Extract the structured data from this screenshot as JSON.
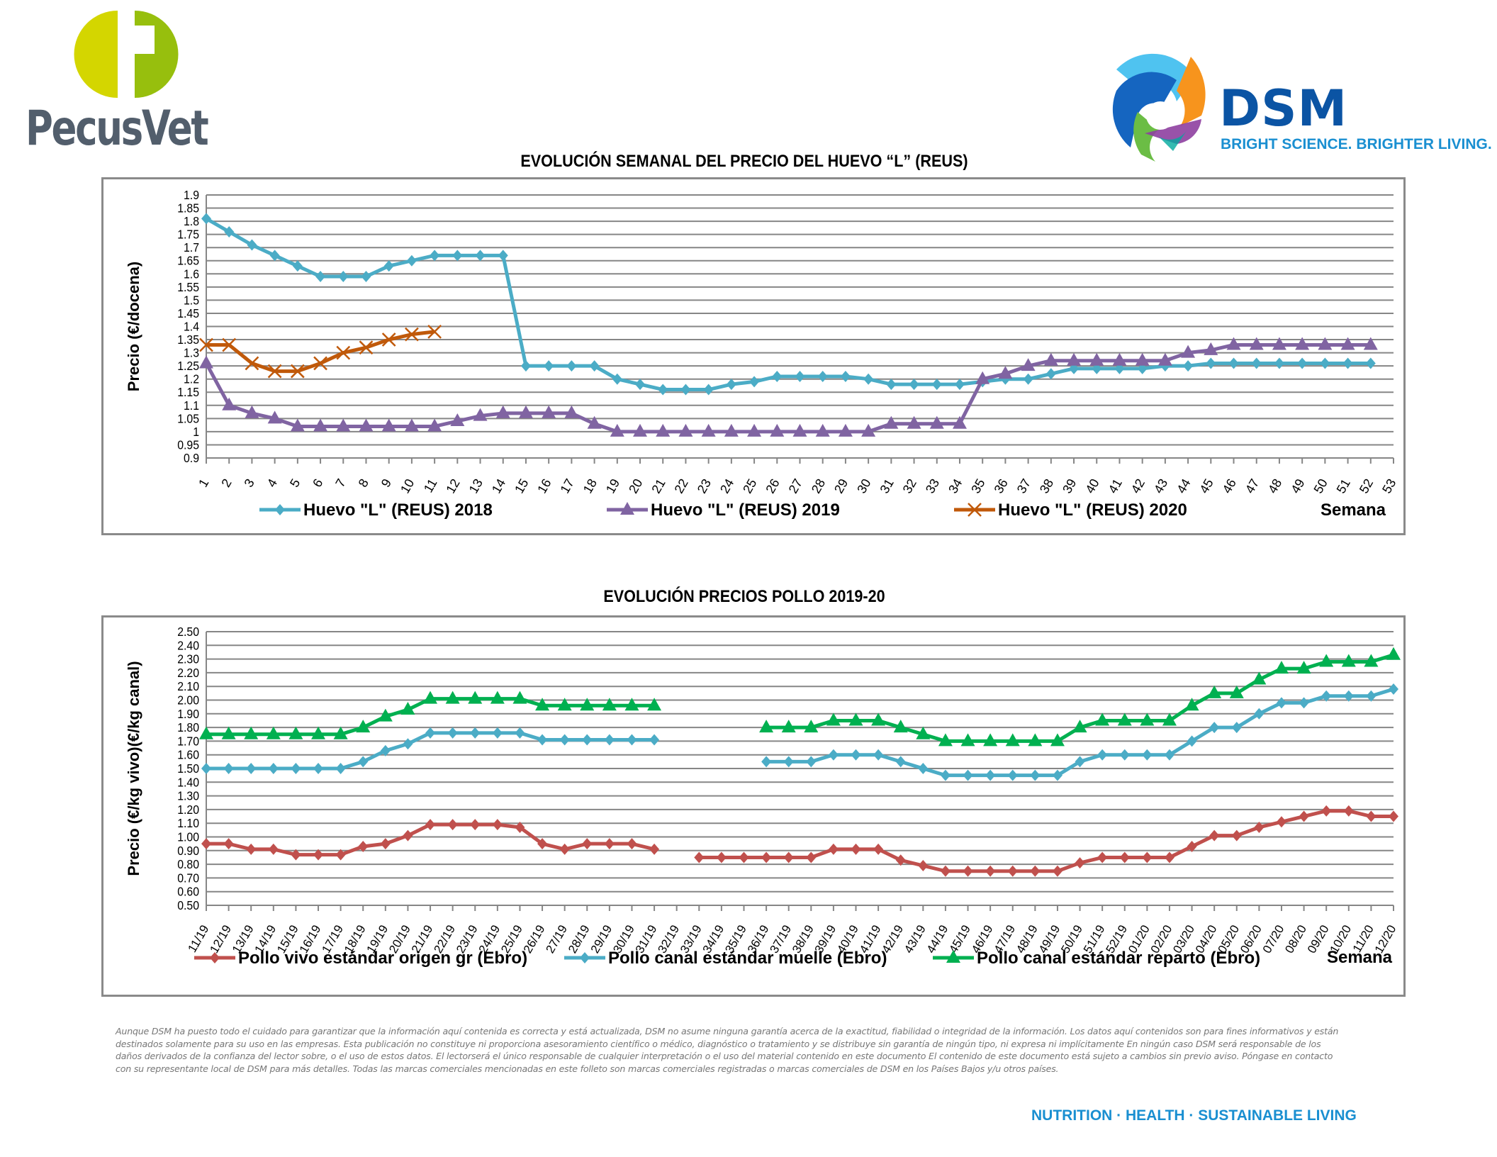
{
  "logos": {
    "left": {
      "name": "PecusVet",
      "letter": "P"
    },
    "right": {
      "name": "DSM",
      "tagline": "BRIGHT SCIENCE. BRIGHTER LIVING."
    }
  },
  "footer": {
    "disclaimer": "Aunque DSM ha puesto todo el cuidado para garantizar que la información aquí contenida es correcta y está actualizada, DSM no asume ninguna garantía acerca de la exactitud, fiabilidad o integridad de la información. Los datos aquí contenidos son para fines informativos y están destinados solamente para su uso en las empresas. Esta publicación no constituye ni proporciona asesoramiento científico o médico, diagnóstico o tratamiento y se distribuye sin garantía de ningún tipo, ni expresa ni implícitamente En ningún caso DSM será responsable de los daños derivados de la confianza del lector sobre, o el uso de estos datos. El lectorserá el único responsable de cualquier interpretación o el uso del material contenido en este documento El contenido de este documento está sujeto a cambios sin previo aviso. Póngase en contacto con su representante local de DSM para más detalles. Todas las marcas comerciales mencionadas en este folleto son marcas comerciales registradas o marcas comerciales de DSM en los Países Bajos y/u otros países.",
    "tagline": "NUTRITION  ·  HEALTH  ·  SUSTAINABLE LIVING"
  },
  "chart_data": [
    {
      "type": "line",
      "title": "EVOLUCIÓN SEMANAL DEL PRECIO DEL HUEVO “L” (REUS)",
      "xlabel": "Semana",
      "ylabel": "Precio (€/docena)",
      "ylim": [
        0.9,
        1.9
      ],
      "ytick_step": 0.05,
      "yticks": [
        "0.9",
        "0.95",
        "1",
        "1.05",
        "1.1",
        "1.15",
        "1.2",
        "1.25",
        "1.3",
        "1.35",
        "1.4",
        "1.45",
        "1.5",
        "1.55",
        "1.6",
        "1.65",
        "1.7",
        "1.75",
        "1.8",
        "1.85",
        "1.9"
      ],
      "grid": true,
      "legend": "bottom",
      "categories": [
        "1",
        "2",
        "3",
        "4",
        "5",
        "6",
        "7",
        "8",
        "9",
        "10",
        "11",
        "12",
        "13",
        "14",
        "15",
        "16",
        "17",
        "18",
        "19",
        "20",
        "21",
        "22",
        "23",
        "24",
        "25",
        "26",
        "27",
        "28",
        "29",
        "30",
        "31",
        "32",
        "33",
        "34",
        "35",
        "36",
        "37",
        "38",
        "39",
        "40",
        "41",
        "42",
        "43",
        "44",
        "45",
        "46",
        "47",
        "48",
        "49",
        "50",
        "51",
        "52",
        "53"
      ],
      "series": [
        {
          "name": "Huevo \"L\" (REUS) 2018",
          "color": "#4bacc6",
          "marker": "diamond",
          "values": [
            1.81,
            1.76,
            1.71,
            1.67,
            1.63,
            1.59,
            1.59,
            1.59,
            1.63,
            1.65,
            1.67,
            1.67,
            1.67,
            1.67,
            1.25,
            1.25,
            1.25,
            1.25,
            1.2,
            1.18,
            1.16,
            1.16,
            1.16,
            1.18,
            1.19,
            1.21,
            1.21,
            1.21,
            1.21,
            1.2,
            1.18,
            1.18,
            1.18,
            1.18,
            1.19,
            1.2,
            1.2,
            1.22,
            1.24,
            1.24,
            1.24,
            1.24,
            1.25,
            1.25,
            1.26,
            1.26,
            1.26,
            1.26,
            1.26,
            1.26,
            1.26,
            1.26,
            null
          ]
        },
        {
          "name": "Huevo \"L\" (REUS) 2019",
          "color": "#8064a2",
          "marker": "triangle",
          "values": [
            1.26,
            1.1,
            1.07,
            1.05,
            1.02,
            1.02,
            1.02,
            1.02,
            1.02,
            1.02,
            1.02,
            1.04,
            1.06,
            1.07,
            1.07,
            1.07,
            1.07,
            1.03,
            1.0,
            1.0,
            1.0,
            1.0,
            1.0,
            1.0,
            1.0,
            1.0,
            1.0,
            1.0,
            1.0,
            1.0,
            1.03,
            1.03,
            1.03,
            1.03,
            1.2,
            1.22,
            1.25,
            1.27,
            1.27,
            1.27,
            1.27,
            1.27,
            1.27,
            1.3,
            1.31,
            1.33,
            1.33,
            1.33,
            1.33,
            1.33,
            1.33,
            1.33,
            null
          ]
        },
        {
          "name": "Huevo \"L\" (REUS) 2020",
          "color": "#c0590a",
          "marker": "x",
          "values": [
            1.33,
            1.33,
            1.26,
            1.23,
            1.23,
            1.26,
            1.3,
            1.32,
            1.35,
            1.37,
            1.38,
            null,
            null,
            null,
            null,
            null,
            null,
            null,
            null,
            null,
            null,
            null,
            null,
            null,
            null,
            null,
            null,
            null,
            null,
            null,
            null,
            null,
            null,
            null,
            null,
            null,
            null,
            null,
            null,
            null,
            null,
            null,
            null,
            null,
            null,
            null,
            null,
            null,
            null,
            null,
            null,
            null,
            null
          ]
        }
      ]
    },
    {
      "type": "line",
      "title": "EVOLUCIÓN PRECIOS POLLO 2019-20",
      "xlabel": "Semana",
      "ylabel": "Precio (€/kg vivo)(€/kg canal)",
      "ylim": [
        0.5,
        2.5
      ],
      "ytick_step": 0.1,
      "yticks": [
        "0.50",
        "0.60",
        "0.70",
        "0.80",
        "0.90",
        "1.00",
        "1.10",
        "1.20",
        "1.30",
        "1.40",
        "1.50",
        "1.60",
        "1.70",
        "1.80",
        "1.90",
        "2.00",
        "2.10",
        "2.20",
        "2.30",
        "2.40",
        "2.50"
      ],
      "grid": true,
      "legend": "bottom",
      "categories": [
        "11/19",
        "12/19",
        "13/19",
        "14/19",
        "15/19",
        "16/19",
        "17/19",
        "18/19",
        "19/19",
        "20/19",
        "21/19",
        "22/19",
        "23/19",
        "24/19",
        "25/19",
        "26/19",
        "27/19",
        "28/19",
        "29/19",
        "30/19",
        "31/19",
        "32/19",
        "33/19",
        "34/19",
        "35/19",
        "36/19",
        "37/19",
        "38/19",
        "39/19",
        "40/19",
        "41/19",
        "42/19",
        "43/19",
        "44/19",
        "45/19",
        "46/19",
        "47/19",
        "48/19",
        "49/19",
        "50/19",
        "51/19",
        "52/19",
        "01/20",
        "02/20",
        "03/20",
        "04/20",
        "05/20",
        "06/20",
        "07/20",
        "08/20",
        "09/20",
        "10/20",
        "11/20",
        "12/20"
      ],
      "series": [
        {
          "name": "Pollo vivo estándar origen gr (Ebro)",
          "color": "#c0504d",
          "marker": "diamond",
          "values": [
            0.95,
            0.95,
            0.91,
            0.91,
            0.87,
            0.87,
            0.87,
            0.93,
            0.95,
            1.01,
            1.09,
            1.09,
            1.09,
            1.09,
            1.07,
            0.95,
            0.91,
            0.95,
            0.95,
            0.95,
            0.91,
            null,
            0.85,
            0.85,
            0.85,
            0.85,
            0.85,
            0.85,
            0.91,
            0.91,
            0.91,
            0.83,
            0.79,
            0.75,
            0.75,
            0.75,
            0.75,
            0.75,
            0.75,
            0.81,
            0.85,
            0.85,
            0.85,
            0.85,
            0.93,
            1.01,
            1.01,
            1.07,
            1.11,
            1.15,
            1.19,
            1.19,
            1.15,
            1.15
          ]
        },
        {
          "name": "Pollo canal estándar muelle (Ebro)",
          "color": "#4bacc6",
          "marker": "diamond",
          "values": [
            1.5,
            1.5,
            1.5,
            1.5,
            1.5,
            1.5,
            1.5,
            1.55,
            1.63,
            1.68,
            1.76,
            1.76,
            1.76,
            1.76,
            1.76,
            1.71,
            1.71,
            1.71,
            1.71,
            1.71,
            1.71,
            null,
            null,
            null,
            null,
            1.55,
            1.55,
            1.55,
            1.6,
            1.6,
            1.6,
            1.55,
            1.5,
            1.45,
            1.45,
            1.45,
            1.45,
            1.45,
            1.45,
            1.55,
            1.6,
            1.6,
            1.6,
            1.6,
            1.7,
            1.8,
            1.8,
            1.9,
            1.98,
            1.98,
            2.03,
            2.03,
            2.03,
            2.08
          ]
        },
        {
          "name": "Pollo canal estándar reparto (Ebro)",
          "color": "#00b050",
          "marker": "triangle",
          "values": [
            1.75,
            1.75,
            1.75,
            1.75,
            1.75,
            1.75,
            1.75,
            1.8,
            1.88,
            1.93,
            2.01,
            2.01,
            2.01,
            2.01,
            2.01,
            1.96,
            1.96,
            1.96,
            1.96,
            1.96,
            1.96,
            null,
            null,
            null,
            null,
            1.8,
            1.8,
            1.8,
            1.85,
            1.85,
            1.85,
            1.8,
            1.75,
            1.7,
            1.7,
            1.7,
            1.7,
            1.7,
            1.7,
            1.8,
            1.85,
            1.85,
            1.85,
            1.85,
            1.96,
            2.05,
            2.05,
            2.15,
            2.23,
            2.23,
            2.28,
            2.28,
            2.28,
            2.33
          ]
        }
      ]
    }
  ]
}
